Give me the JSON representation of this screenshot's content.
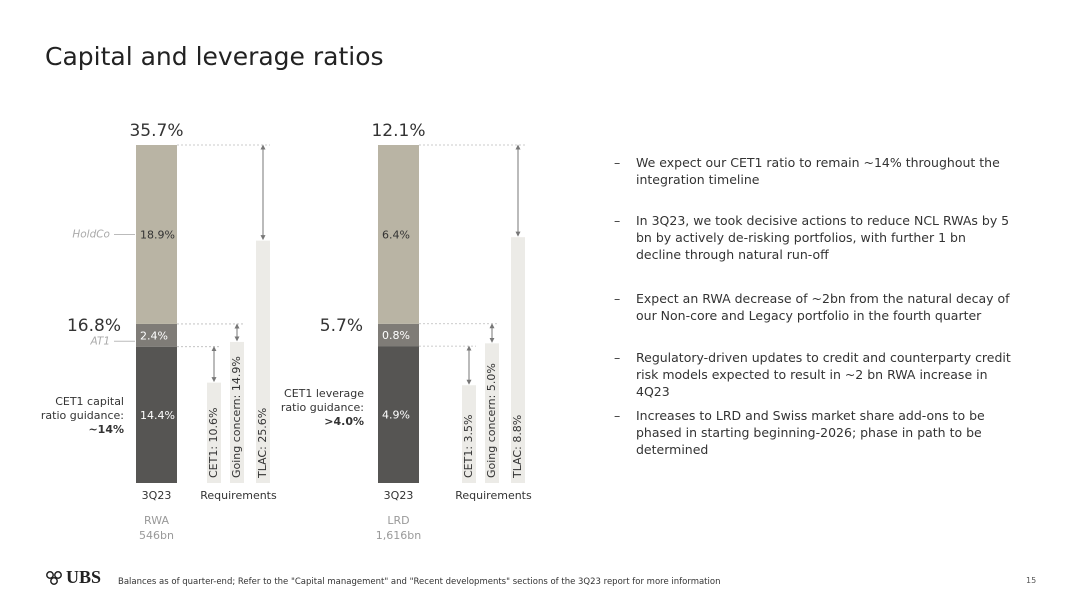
{
  "title": "Capital and leverage ratios",
  "chart_data": [
    {
      "type": "stacked_bar",
      "categories": [
        "3Q23",
        "Requirements"
      ],
      "total": {
        "value": 35.7,
        "label": "35.7%"
      },
      "tier1": {
        "value": 16.8,
        "label": "16.8%"
      },
      "stack": [
        {
          "value": 14.4,
          "label": "14.4%",
          "color": "#565553"
        },
        {
          "name": "AT1",
          "value": 2.4,
          "label": "2.4%",
          "color": "#7f7c77"
        },
        {
          "name": "HoldCo",
          "value": 18.9,
          "label": "18.9%",
          "color": "#b9b4a4"
        }
      ],
      "requirements": [
        {
          "value": 10.6,
          "label": "CET1: 10.6%"
        },
        {
          "value": 14.9,
          "label": "Going concern: 14.9%"
        },
        {
          "value": 25.6,
          "label": "TLAC: 25.6%"
        }
      ],
      "requirement_color": "#ecebe7",
      "guidance": "CET1 capital ratio guidance:",
      "guidance_value": "~14%",
      "base": "RWA",
      "base_amount": "546bn"
    },
    {
      "type": "stacked_bar",
      "categories": [
        "3Q23",
        "Requirements"
      ],
      "total": {
        "value": 12.1,
        "label": "12.1%"
      },
      "tier1": {
        "value": 5.7,
        "label": "5.7%"
      },
      "stack": [
        {
          "value": 4.9,
          "label": "4.9%",
          "color": "#565553"
        },
        {
          "value": 0.8,
          "label": "0.8%",
          "color": "#7f7c77"
        },
        {
          "value": 6.4,
          "label": "6.4%",
          "color": "#b9b4a4"
        }
      ],
      "requirements": [
        {
          "value": 3.5,
          "label": "CET1: 3.5%"
        },
        {
          "value": 5.0,
          "label": "Going concern: 5.0%"
        },
        {
          "value": 8.8,
          "label": "TLAC: 8.8%"
        }
      ],
      "requirement_color": "#ecebe7",
      "guidance": "CET1 leverage ratio guidance:",
      "guidance_value": ">4.0%",
      "base": "LRD",
      "base_amount": "1,616bn"
    }
  ],
  "bullets": [
    "We expect our CET1 ratio to remain ~14% throughout the integration timeline",
    "In 3Q23, we took decisive actions to reduce NCL RWAs by 5 bn by actively de-risking portfolios, with further 1 bn decline through natural run-off",
    "Expect an RWA decrease of ~2bn from the natural decay of our Non-core and Legacy portfolio in the fourth quarter",
    "Regulatory-driven updates to credit and counterparty credit risk models expected to result in ~2 bn RWA increase in 4Q23",
    "Increases to LRD and Swiss market share add-ons to be phased in starting beginning-2026; phase in path to be determined"
  ],
  "logo": "UBS",
  "footnote": "Balances as of quarter-end; Refer to the \"Capital management\" and \"Recent developments\" sections of the 3Q23 report for more information",
  "page_number": "15"
}
